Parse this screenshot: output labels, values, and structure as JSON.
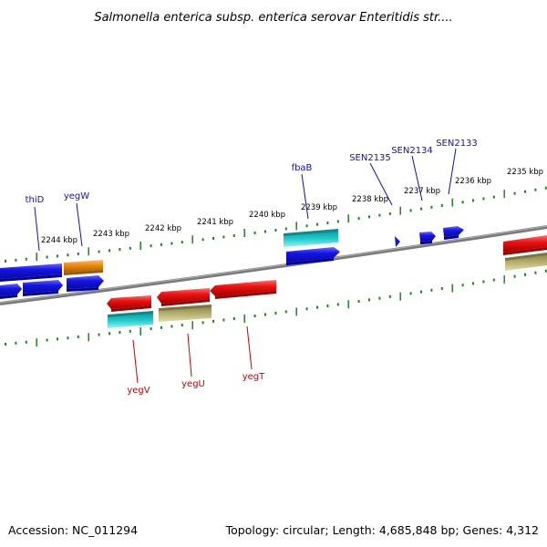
{
  "title": "Salmonella enterica subsp. enterica serovar Enteritidis str....",
  "footer": {
    "accession": "Accession: NC_011294",
    "topology": "Topology: circular; Length: 4,685,848 bp; Genes: 4,312"
  },
  "colors": {
    "backbone": "#7a7a7a",
    "tick": "#1a8a1a",
    "forward_label": "#1010b8",
    "reverse_label": "#cc0000",
    "blue": "#1414e8",
    "orange": "#ee8c12",
    "red": "#ee1212",
    "cyan": "#20cccc",
    "khaki": "#b8b070"
  },
  "scale": {
    "unit": "kbp",
    "labels": [
      "2244 kbp",
      "2243 kbp",
      "2242 kbp",
      "2241 kbp",
      "2240 kbp",
      "2239 kbp",
      "2238 kbp",
      "2237 kbp",
      "2236 kbp",
      "2235 kbp"
    ]
  },
  "forward_labels": [
    "thiD",
    "yegW",
    "fbaB",
    "SEN2135",
    "SEN2134",
    "SEN2133"
  ],
  "reverse_labels": [
    "yegV",
    "yegU",
    "yegT"
  ]
}
